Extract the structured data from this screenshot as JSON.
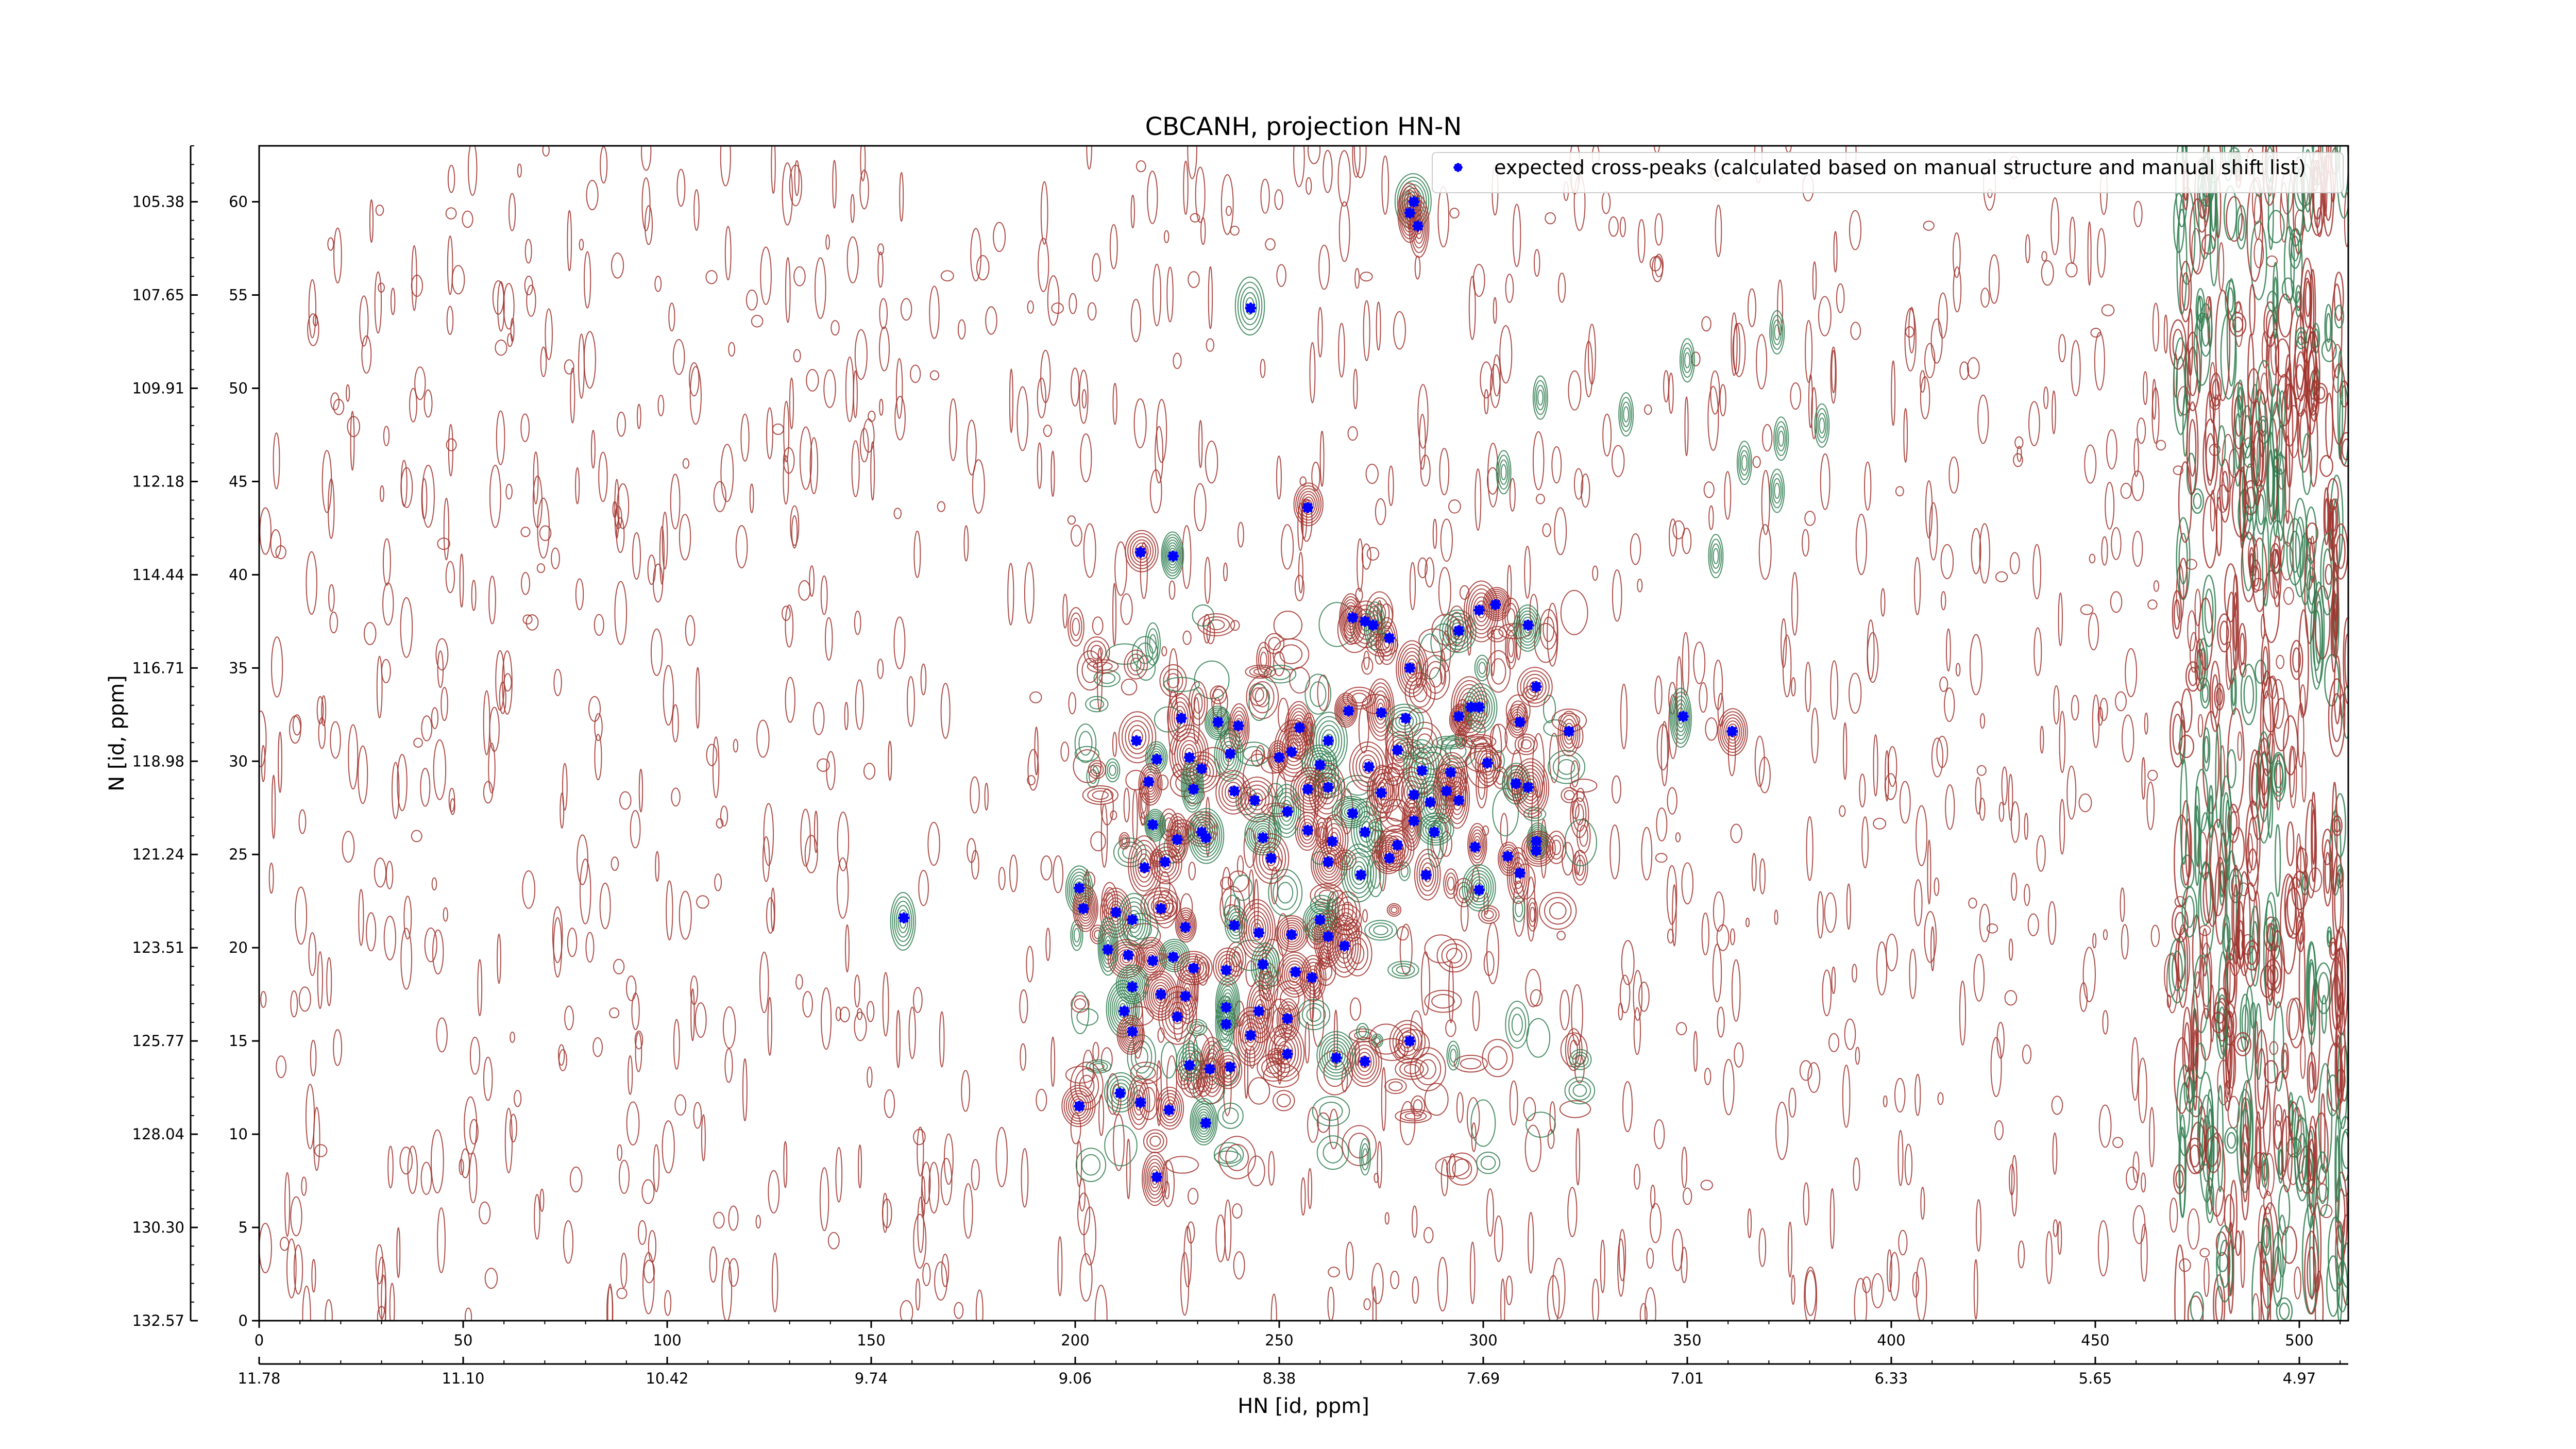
{
  "chart_data": {
    "type": "scatter",
    "title": "CBCANH, projection HN-N",
    "xlabel": "HN [id, ppm]",
    "ylabel": "N [id, ppm]",
    "xlim": [
      0,
      512
    ],
    "ylim": [
      0,
      63
    ],
    "x_ticks": [
      0,
      50,
      100,
      150,
      200,
      250,
      300,
      350,
      400,
      450,
      500
    ],
    "y_ticks": [
      0,
      5,
      10,
      15,
      20,
      25,
      30,
      35,
      40,
      45,
      50,
      55,
      60
    ],
    "hn_ppm_ticks": [
      "11.78",
      "11.10",
      "10.42",
      "9.74",
      "9.06",
      "8.38",
      "7.69",
      "7.01",
      "6.33",
      "5.65",
      "4.97"
    ],
    "n_ppm_ticks": [
      "132.57",
      "130.30",
      "128.04",
      "125.77",
      "123.51",
      "121.24",
      "118.98",
      "116.71",
      "114.44",
      "112.18",
      "109.91",
      "107.65",
      "105.38"
    ],
    "legend": {
      "placement": "top-right",
      "entries": [
        "expected cross-peaks (calculated based on manual structure and manual shift list)"
      ]
    },
    "colors": {
      "markers": "#0000ff",
      "positive_contours": "#a0302a",
      "negative_contours": "#2e7d4f"
    },
    "series": [
      {
        "name": "expected cross-peaks (calculated based on manual structure and manual shift list)",
        "points": [
          [
            283,
            60
          ],
          [
            282,
            59.4
          ],
          [
            284,
            58.7
          ],
          [
            243,
            54.3
          ],
          [
            257,
            43.6
          ],
          [
            216,
            41.2
          ],
          [
            224,
            41
          ],
          [
            268,
            37.7
          ],
          [
            271,
            37.5
          ],
          [
            273,
            37.3
          ],
          [
            277,
            36.6
          ],
          [
            282,
            35
          ],
          [
            294,
            37
          ],
          [
            299,
            38.1
          ],
          [
            303,
            38.4
          ],
          [
            311,
            37.3
          ],
          [
            313,
            34
          ],
          [
            226,
            32.3
          ],
          [
            235,
            32.1
          ],
          [
            240,
            31.9
          ],
          [
            255,
            31.8
          ],
          [
            262,
            31.1
          ],
          [
            267,
            32.7
          ],
          [
            275,
            32.6
          ],
          [
            281,
            32.3
          ],
          [
            294,
            32.4
          ],
          [
            297,
            32.9
          ],
          [
            299,
            32.9
          ],
          [
            309,
            32.1
          ],
          [
            321,
            31.6
          ],
          [
            349,
            32.4
          ],
          [
            361,
            31.6
          ],
          [
            215,
            31.1
          ],
          [
            220,
            30.1
          ],
          [
            228,
            30.2
          ],
          [
            231,
            29.6
          ],
          [
            238,
            30.4
          ],
          [
            250,
            30.2
          ],
          [
            253,
            30.5
          ],
          [
            260,
            29.8
          ],
          [
            272,
            29.7
          ],
          [
            279,
            30.6
          ],
          [
            285,
            29.5
          ],
          [
            292,
            29.4
          ],
          [
            301,
            29.9
          ],
          [
            308,
            28.8
          ],
          [
            311,
            28.6
          ],
          [
            218,
            28.9
          ],
          [
            229,
            28.5
          ],
          [
            239,
            28.4
          ],
          [
            244,
            27.9
          ],
          [
            252,
            27.3
          ],
          [
            257,
            28.5
          ],
          [
            262,
            28.6
          ],
          [
            268,
            27.2
          ],
          [
            275,
            28.3
          ],
          [
            283,
            28.2
          ],
          [
            287,
            27.8
          ],
          [
            291,
            28.4
          ],
          [
            294,
            27.9
          ],
          [
            219,
            26.6
          ],
          [
            225,
            25.8
          ],
          [
            231,
            26.2
          ],
          [
            246,
            25.9
          ],
          [
            257,
            26.3
          ],
          [
            263,
            25.7
          ],
          [
            271,
            26.2
          ],
          [
            279,
            25.5
          ],
          [
            283,
            26.8
          ],
          [
            288,
            26.2
          ],
          [
            298,
            25.4
          ],
          [
            306,
            24.9
          ],
          [
            313,
            25.7
          ],
          [
            217,
            24.3
          ],
          [
            222,
            24.6
          ],
          [
            232,
            25.9
          ],
          [
            248,
            24.8
          ],
          [
            262,
            24.6
          ],
          [
            270,
            23.9
          ],
          [
            277,
            24.8
          ],
          [
            286,
            23.9
          ],
          [
            299,
            23.1
          ],
          [
            309,
            24
          ],
          [
            313,
            25.2
          ],
          [
            201,
            23.2
          ],
          [
            202,
            22.1
          ],
          [
            210,
            21.9
          ],
          [
            214,
            21.5
          ],
          [
            221,
            22.1
          ],
          [
            227,
            21.1
          ],
          [
            239,
            21.2
          ],
          [
            245,
            20.8
          ],
          [
            253,
            20.7
          ],
          [
            260,
            21.5
          ],
          [
            262,
            20.6
          ],
          [
            266,
            20.1
          ],
          [
            208,
            19.9
          ],
          [
            213,
            19.6
          ],
          [
            219,
            19.3
          ],
          [
            224,
            19.5
          ],
          [
            229,
            18.9
          ],
          [
            237,
            18.8
          ],
          [
            246,
            19.1
          ],
          [
            254,
            18.7
          ],
          [
            258,
            18.4
          ],
          [
            214,
            17.9
          ],
          [
            221,
            17.5
          ],
          [
            227,
            17.4
          ],
          [
            237,
            16.8
          ],
          [
            245,
            16.6
          ],
          [
            252,
            16.2
          ],
          [
            212,
            16.6
          ],
          [
            214,
            15.5
          ],
          [
            225,
            16.3
          ],
          [
            237,
            15.9
          ],
          [
            243,
            15.3
          ],
          [
            252,
            14.3
          ],
          [
            264,
            14.1
          ],
          [
            271,
            13.9
          ],
          [
            282,
            15
          ],
          [
            228,
            13.7
          ],
          [
            233,
            13.5
          ],
          [
            238,
            13.6
          ],
          [
            211,
            12.2
          ],
          [
            216,
            11.7
          ],
          [
            223,
            11.3
          ],
          [
            232,
            10.6
          ],
          [
            201,
            11.5
          ],
          [
            220,
            7.7
          ],
          [
            158,
            21.6
          ]
        ]
      }
    ]
  }
}
